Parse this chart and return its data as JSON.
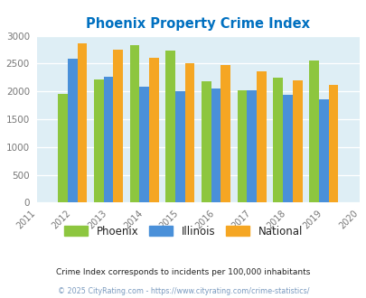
{
  "title": "Phoenix Property Crime Index",
  "years": [
    2011,
    2012,
    2013,
    2014,
    2015,
    2016,
    2017,
    2018,
    2019,
    2020
  ],
  "bar_years": [
    2012,
    2013,
    2014,
    2015,
    2016,
    2017,
    2018,
    2019
  ],
  "phoenix": [
    1950,
    2210,
    2830,
    2740,
    2180,
    2020,
    2250,
    2560
  ],
  "illinois": [
    2590,
    2270,
    2090,
    2000,
    2060,
    2020,
    1945,
    1860
  ],
  "national": [
    2870,
    2750,
    2610,
    2500,
    2470,
    2360,
    2195,
    2110
  ],
  "phoenix_color": "#8dc63f",
  "illinois_color": "#4a90d9",
  "national_color": "#f5a623",
  "bg_color": "#deeef5",
  "ylim": [
    0,
    3000
  ],
  "yticks": [
    0,
    500,
    1000,
    1500,
    2000,
    2500,
    3000
  ],
  "title_color": "#0070c0",
  "legend_labels": [
    "Phoenix",
    "Illinois",
    "National"
  ],
  "footnote1": "Crime Index corresponds to incidents per 100,000 inhabitants",
  "footnote2": "© 2025 CityRating.com - https://www.cityrating.com/crime-statistics/",
  "footnote1_color": "#222222",
  "footnote2_color": "#7a9abf",
  "bar_width": 0.27
}
